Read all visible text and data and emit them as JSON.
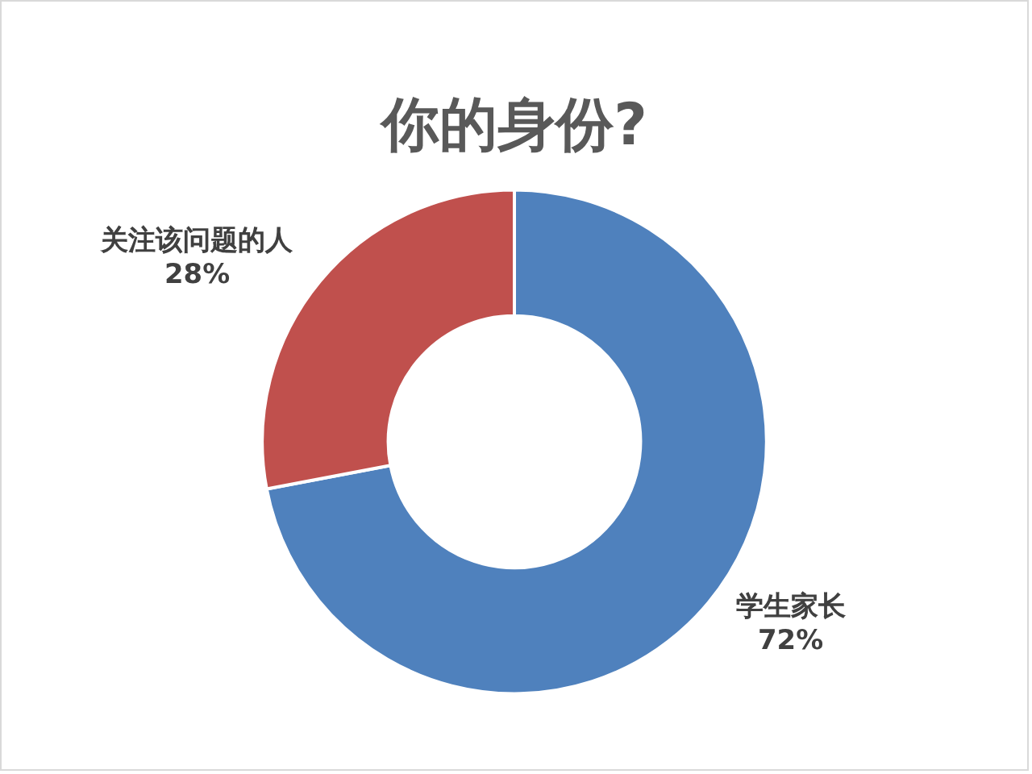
{
  "chart_data": {
    "type": "donut",
    "title": "你的身份?",
    "categories": [
      "学生家长",
      "关注该问题的人"
    ],
    "values": [
      72,
      28
    ],
    "colors": [
      "#4f81bd",
      "#c0504d"
    ],
    "value_labels": [
      "72%",
      "28%"
    ],
    "legend": false
  }
}
